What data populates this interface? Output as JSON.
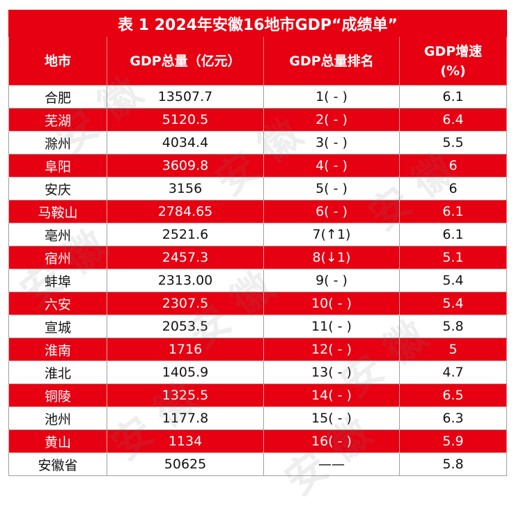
{
  "title": "表 1  2024年安徽16地市GDP“成绩单”",
  "headers": {
    "city": "地市",
    "gdp": "GDP总量（亿元）",
    "rank": "GDP总量排名",
    "growth": "GDP增速\n(%)"
  },
  "rows": [
    {
      "city": "合肥",
      "gdp": "13507.7",
      "rank": "1( - )",
      "growth": "6.1"
    },
    {
      "city": "芜湖",
      "gdp": "5120.5",
      "rank": "2( - )",
      "growth": "6.4"
    },
    {
      "city": "滁州",
      "gdp": "4034.4",
      "rank": "3( - )",
      "growth": "5.5"
    },
    {
      "city": "阜阳",
      "gdp": "3609.8",
      "rank": "4( - )",
      "growth": "6"
    },
    {
      "city": "安庆",
      "gdp": "3156",
      "rank": "5( - )",
      "growth": "6"
    },
    {
      "city": "马鞍山",
      "gdp": "2784.65",
      "rank": "6( - )",
      "growth": "6.1"
    },
    {
      "city": "亳州",
      "gdp": "2521.6",
      "rank": "7(↑1)",
      "growth": "6.1"
    },
    {
      "city": "宿州",
      "gdp": "2457.3",
      "rank": "8(↓1)",
      "growth": "5.1"
    },
    {
      "city": "蚌埠",
      "gdp": "2313.00",
      "rank": "9( - )",
      "growth": "5.4"
    },
    {
      "city": "六安",
      "gdp": "2307.5",
      "rank": "10( - )",
      "growth": "5.4"
    },
    {
      "city": "宣城",
      "gdp": "2053.5",
      "rank": "11( - )",
      "growth": "5.8"
    },
    {
      "city": "淮南",
      "gdp": "1716",
      "rank": "12( - )",
      "growth": "5"
    },
    {
      "city": "淮北",
      "gdp": "1405.9",
      "rank": "13( - )",
      "growth": "4.7"
    },
    {
      "city": "铜陵",
      "gdp": "1325.5",
      "rank": "14( - )",
      "growth": "6.5"
    },
    {
      "city": "池州",
      "gdp": "1177.8",
      "rank": "15( - )",
      "growth": "6.3"
    },
    {
      "city": "黄山",
      "gdp": "1134",
      "rank": "16( - )",
      "growth": "5.9"
    },
    {
      "city": "安徽省",
      "gdp": "50625",
      "rank": "——",
      "growth": "5.8"
    }
  ],
  "colors": {
    "accent": "#e60012",
    "text": "#111111",
    "background": "#ffffff"
  }
}
